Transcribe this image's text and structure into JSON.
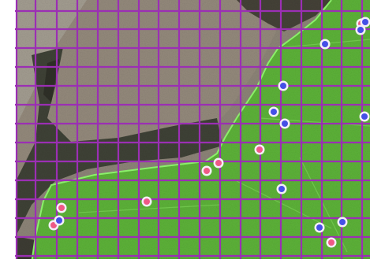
{
  "colors": {
    "grid_line": "#9b2fb4",
    "zone_fill": "#57b52f",
    "zone_border": "#8bf06a",
    "marker_pink": "#ee5a86",
    "marker_blue": "#4550e6",
    "marker_ring": "#f4eef8",
    "white_border": "#ffffff"
  },
  "map": {
    "view": "aerial-imagery",
    "overlay_grid": true,
    "highlighted_zone": "green-area"
  },
  "markers": {
    "pink_count": 8,
    "blue_count": 11
  }
}
